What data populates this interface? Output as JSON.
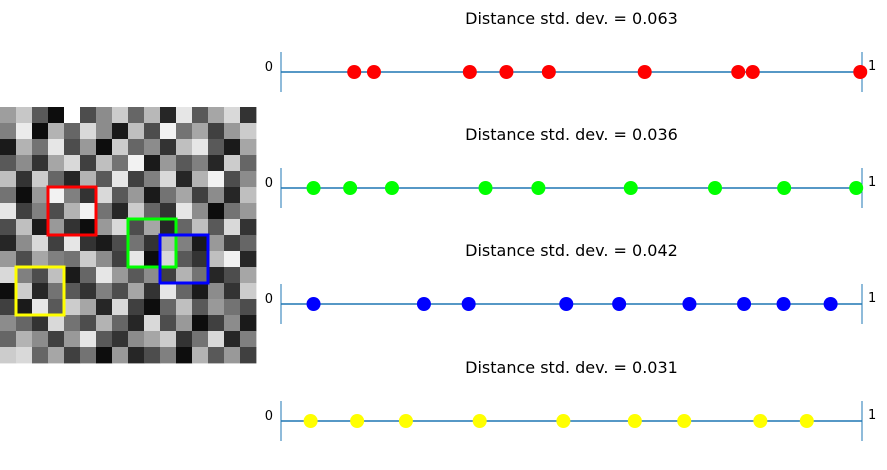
{
  "chart_data": [
    {
      "type": "heatmap",
      "colormap": "grayscale",
      "rows": 16,
      "cols": 16,
      "values": [
        [
          0.62,
          0.78,
          0.35,
          0.05,
          1.0,
          0.3,
          0.55,
          0.8,
          0.4,
          0.72,
          0.15,
          0.9,
          0.35,
          0.65,
          0.85,
          0.2
        ],
        [
          0.5,
          0.92,
          0.05,
          0.7,
          0.4,
          0.85,
          0.55,
          0.1,
          0.75,
          0.3,
          0.95,
          0.45,
          0.65,
          0.25,
          0.6,
          0.8
        ],
        [
          0.1,
          0.7,
          0.45,
          0.9,
          0.3,
          0.6,
          0.05,
          0.8,
          0.4,
          0.55,
          0.2,
          0.75,
          0.9,
          0.35,
          0.1,
          0.65
        ],
        [
          0.35,
          0.55,
          0.2,
          0.65,
          0.85,
          0.25,
          0.75,
          0.45,
          0.95,
          0.1,
          0.6,
          0.35,
          0.5,
          0.15,
          0.8,
          0.4
        ],
        [
          0.75,
          0.2,
          0.8,
          0.4,
          0.15,
          0.7,
          0.35,
          0.9,
          0.25,
          0.5,
          0.85,
          0.15,
          0.7,
          0.95,
          0.3,
          0.55
        ],
        [
          0.45,
          0.05,
          0.6,
          0.95,
          0.5,
          0.2,
          0.85,
          0.35,
          0.6,
          0.1,
          0.45,
          0.65,
          0.25,
          0.55,
          0.15,
          0.75
        ],
        [
          0.9,
          0.25,
          0.5,
          0.3,
          0.7,
          0.95,
          0.45,
          0.15,
          0.8,
          0.4,
          0.2,
          0.9,
          0.55,
          0.05,
          0.45,
          0.6
        ],
        [
          0.3,
          0.75,
          0.1,
          0.6,
          0.2,
          0.05,
          0.6,
          0.85,
          0.3,
          0.65,
          0.15,
          0.4,
          0.75,
          0.35,
          0.85,
          0.2
        ],
        [
          0.15,
          0.55,
          0.85,
          0.25,
          0.9,
          0.2,
          0.1,
          0.3,
          0.45,
          0.2,
          0.7,
          0.5,
          0.1,
          0.6,
          0.25,
          0.4
        ],
        [
          0.6,
          0.3,
          0.65,
          0.5,
          0.45,
          0.8,
          0.55,
          0.25,
          0.9,
          0.05,
          0.85,
          0.35,
          0.2,
          0.75,
          0.95,
          0.15
        ],
        [
          0.85,
          0.5,
          0.3,
          0.75,
          0.1,
          0.4,
          0.9,
          0.6,
          0.35,
          0.55,
          0.25,
          0.7,
          0.45,
          0.15,
          0.3,
          0.65
        ],
        [
          0.05,
          0.8,
          0.15,
          0.45,
          0.35,
          0.2,
          0.5,
          0.3,
          0.65,
          0.2,
          0.9,
          0.4,
          0.1,
          0.55,
          0.2,
          0.8
        ],
        [
          0.25,
          0.1,
          0.9,
          0.35,
          0.8,
          0.65,
          0.15,
          0.85,
          0.25,
          0.05,
          0.4,
          0.75,
          0.35,
          0.6,
          0.45,
          0.3
        ],
        [
          0.55,
          0.4,
          0.2,
          0.85,
          0.45,
          0.3,
          0.7,
          0.4,
          0.15,
          0.85,
          0.3,
          0.6,
          0.05,
          0.25,
          0.55,
          0.1
        ],
        [
          0.4,
          0.7,
          0.55,
          0.25,
          0.6,
          0.9,
          0.35,
          0.2,
          0.55,
          0.65,
          0.8,
          0.2,
          0.45,
          0.85,
          0.15,
          0.5
        ],
        [
          0.8,
          0.85,
          0.4,
          0.65,
          0.25,
          0.45,
          0.05,
          0.6,
          0.15,
          0.3,
          0.5,
          0.05,
          0.7,
          0.35,
          0.6,
          0.25
        ]
      ],
      "boxes": [
        {
          "color": "#ff0000",
          "col": 3,
          "row": 5,
          "w": 3,
          "h": 3
        },
        {
          "color": "#00ff00",
          "col": 8,
          "row": 7,
          "w": 3,
          "h": 3
        },
        {
          "color": "#0000ff",
          "col": 10,
          "row": 8,
          "w": 3,
          "h": 3
        },
        {
          "color": "#ffff00",
          "col": 1,
          "row": 10,
          "w": 3,
          "h": 3
        }
      ]
    },
    {
      "type": "scatter",
      "title": "Distance std. dev. = 0.063",
      "color": "#ff0000",
      "xlim": [
        0,
        1
      ],
      "xmin_label": "0",
      "xmax_label": "1",
      "x": [
        0.126,
        0.16,
        0.325,
        0.388,
        0.461,
        0.626,
        0.787,
        0.812,
        0.997
      ]
    },
    {
      "type": "scatter",
      "title": "Distance std. dev. = 0.036",
      "color": "#00ff00",
      "xlim": [
        0,
        1
      ],
      "xmin_label": "0",
      "xmax_label": "1",
      "x": [
        0.056,
        0.119,
        0.191,
        0.352,
        0.443,
        0.602,
        0.747,
        0.866,
        0.99
      ]
    },
    {
      "type": "scatter",
      "title": "Distance std. dev. = 0.042",
      "color": "#0000ff",
      "xlim": [
        0,
        1
      ],
      "xmin_label": "0",
      "xmax_label": "1",
      "x": [
        0.056,
        0.246,
        0.323,
        0.491,
        0.582,
        0.703,
        0.797,
        0.865,
        0.946
      ]
    },
    {
      "type": "scatter",
      "title": "Distance std. dev. = 0.031",
      "color": "#ffff00",
      "xlim": [
        0,
        1
      ],
      "xmin_label": "0",
      "xmax_label": "1",
      "x": [
        0.051,
        0.131,
        0.215,
        0.342,
        0.486,
        0.609,
        0.694,
        0.825,
        0.905
      ]
    }
  ],
  "style": {
    "axis_color": "#1f77b4",
    "frame_color": "#1f77b4"
  }
}
